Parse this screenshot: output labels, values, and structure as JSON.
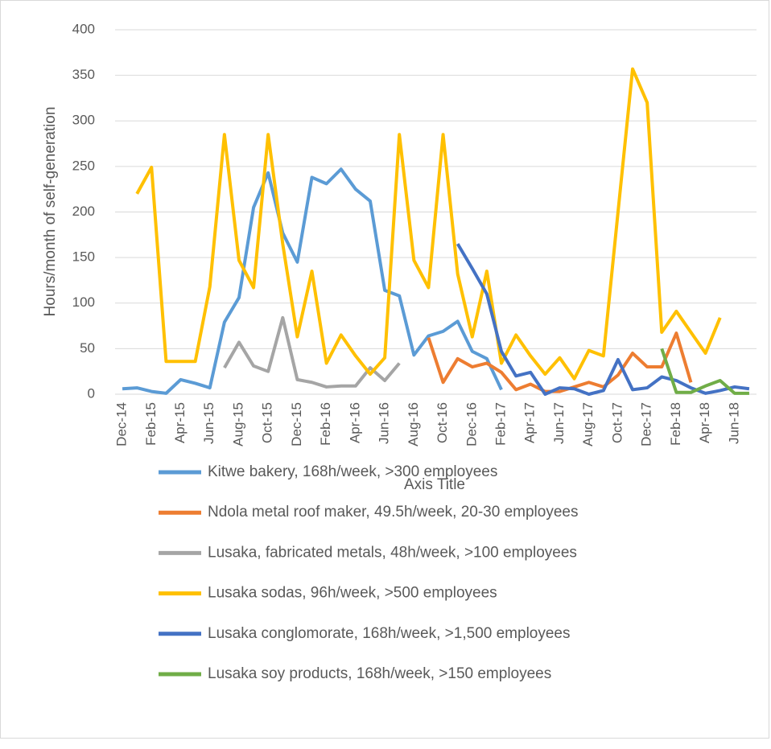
{
  "chart_data": {
    "type": "line",
    "y_label": "Hours/month of self-generation",
    "x_label": "Axis Title",
    "categories": [
      "Dec-14",
      null,
      "Feb-15",
      null,
      "Apr-15",
      null,
      "Jun-15",
      null,
      "Aug-15",
      null,
      "Oct-15",
      null,
      "Dec-15",
      null,
      "Feb-16",
      null,
      "Apr-16",
      null,
      "Jun-16",
      null,
      "Aug-16",
      null,
      "Oct-16",
      null,
      "Dec-16",
      null,
      "Feb-17",
      null,
      "Apr-17",
      null,
      "Jun-17",
      null,
      "Aug-17",
      null,
      "Oct-17",
      null,
      "Dec-17",
      null,
      "Feb-18",
      null,
      "Apr-18",
      null,
      "Jun-18",
      null
    ],
    "ylim": [
      0,
      400
    ],
    "yticks": [
      0,
      50,
      100,
      150,
      200,
      250,
      300,
      350,
      400
    ],
    "grid": true,
    "series": [
      {
        "name": "Kitwe bakery, 168h/week, >300 employees",
        "color": "#5b9bd5",
        "values": [
          6,
          7,
          3,
          1,
          16,
          12,
          7,
          79,
          106,
          205,
          243,
          177,
          145,
          238,
          231,
          247,
          225,
          212,
          114,
          108,
          43,
          64,
          69,
          80,
          47,
          39,
          5,
          null,
          null,
          null,
          null,
          null,
          null,
          null,
          null,
          null,
          null,
          null,
          null,
          null,
          null,
          null,
          null,
          null
        ]
      },
      {
        "name": "Ndola metal roof maker, 49.5h/week, 20-30 employees",
        "color": "#ed7d31",
        "values": [
          null,
          null,
          null,
          null,
          null,
          null,
          null,
          null,
          null,
          null,
          null,
          null,
          null,
          null,
          null,
          null,
          null,
          null,
          null,
          null,
          null,
          62,
          13,
          39,
          30,
          34,
          24,
          5,
          11,
          3,
          3,
          8,
          13,
          8,
          21,
          45,
          30,
          30,
          67,
          13,
          null,
          null,
          null,
          null
        ]
      },
      {
        "name": "Lusaka, fabricated metals, 48h/week, >100 employees",
        "color": "#a5a5a5",
        "values": [
          null,
          null,
          null,
          null,
          null,
          null,
          null,
          29,
          57,
          31,
          25,
          84,
          16,
          13,
          8,
          9,
          9,
          29,
          15,
          34,
          null,
          null,
          null,
          null,
          null,
          null,
          null,
          null,
          null,
          null,
          null,
          null,
          null,
          null,
          null,
          null,
          null,
          null,
          null,
          null,
          null,
          null,
          null,
          null
        ]
      },
      {
        "name": "Lusaka sodas, 96h/week, >500 employees",
        "color": "#ffc000",
        "values": [
          null,
          220,
          249,
          36,
          36,
          36,
          118,
          285,
          147,
          117,
          285,
          165,
          63,
          135,
          34,
          65,
          42,
          22,
          40,
          285,
          147,
          117,
          285,
          132,
          63,
          135,
          34,
          65,
          42,
          22,
          40,
          17,
          48,
          42,
          200,
          357,
          320,
          68,
          91,
          68,
          45,
          84,
          null,
          null
        ]
      },
      {
        "name": "Lusaka conglomorate, 168h/week, >1,500 employees",
        "color": "#4472c4",
        "values": [
          null,
          null,
          null,
          null,
          null,
          null,
          null,
          null,
          null,
          null,
          null,
          null,
          null,
          null,
          null,
          null,
          null,
          null,
          null,
          null,
          null,
          null,
          null,
          165,
          138,
          110,
          47,
          20,
          24,
          0,
          7,
          6,
          0,
          4,
          38,
          5,
          7,
          19,
          15,
          7,
          1,
          4,
          8,
          6
        ]
      },
      {
        "name": "Lusaka soy products, 168h/week, >150 employees",
        "color": "#70ad47",
        "values": [
          null,
          null,
          null,
          null,
          null,
          null,
          null,
          null,
          null,
          null,
          null,
          null,
          null,
          null,
          null,
          null,
          null,
          null,
          null,
          null,
          null,
          null,
          null,
          null,
          null,
          null,
          null,
          null,
          null,
          null,
          null,
          null,
          null,
          null,
          null,
          null,
          null,
          50,
          2,
          2,
          9,
          15,
          1,
          1
        ]
      }
    ]
  }
}
